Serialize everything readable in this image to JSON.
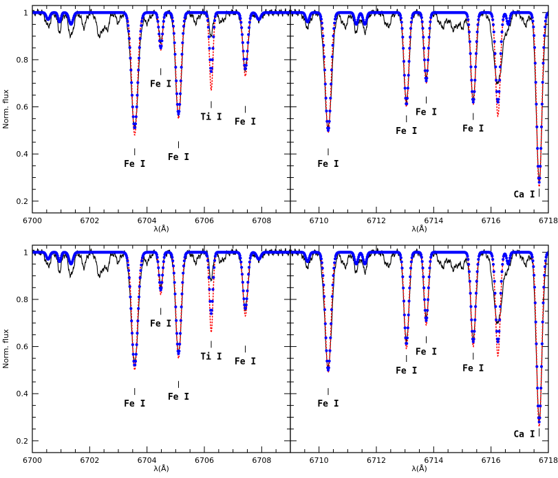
{
  "chart_data": [
    {
      "id": "top-left",
      "type": "line",
      "xlim": [
        6700,
        6709
      ],
      "ylim": [
        0.15,
        1.03
      ],
      "xticks": [
        "6700",
        "6702",
        "6704",
        "6706",
        "6708"
      ],
      "yticks": [
        "0.2",
        "0.4",
        "0.6",
        "0.8",
        "1"
      ],
      "xlabel": "λ(Å)",
      "ylabel": "Norm. flux",
      "series": [
        {
          "style": "solid",
          "color": "#000000",
          "lines": [
            {
              "center": 6703.57,
              "depth": 0.49,
              "width": 0.12
            },
            {
              "center": 6704.48,
              "depth": 0.12,
              "width": 0.07
            },
            {
              "center": 6705.1,
              "depth": 0.44,
              "width": 0.1
            },
            {
              "center": 6706.24,
              "depth": 0.1,
              "width": 0.06
            },
            {
              "center": 6707.43,
              "depth": 0.24,
              "width": 0.09
            }
          ]
        },
        {
          "style": "dotted",
          "color": "#ff0000",
          "lines": [
            {
              "center": 6703.57,
              "depth": 0.52,
              "width": 0.1
            },
            {
              "center": 6704.48,
              "depth": 0.16,
              "width": 0.06
            },
            {
              "center": 6705.1,
              "depth": 0.45,
              "width": 0.09
            },
            {
              "center": 6706.24,
              "depth": 0.33,
              "width": 0.06
            },
            {
              "center": 6707.43,
              "depth": 0.27,
              "width": 0.08
            }
          ]
        },
        {
          "style": "dots",
          "color": "#0000ff",
          "lines": [
            {
              "center": 6703.57,
              "depth": 0.49,
              "width": 0.11
            },
            {
              "center": 6704.48,
              "depth": 0.15,
              "width": 0.06
            },
            {
              "center": 6705.1,
              "depth": 0.43,
              "width": 0.09
            },
            {
              "center": 6706.24,
              "depth": 0.25,
              "width": 0.06
            },
            {
              "center": 6707.43,
              "depth": 0.24,
              "width": 0.08
            }
          ]
        }
      ],
      "annotations": [
        {
          "text": "Fe I",
          "x": 6703.57,
          "y": 0.38
        },
        {
          "text": "Fe I",
          "x": 6704.48,
          "y": 0.72
        },
        {
          "text": "Fe I",
          "x": 6705.1,
          "y": 0.41
        },
        {
          "text": "Ti I",
          "x": 6706.24,
          "y": 0.58
        },
        {
          "text": "Fe I",
          "x": 6707.43,
          "y": 0.56
        }
      ]
    },
    {
      "id": "top-right",
      "type": "line",
      "xlim": [
        6709,
        6718
      ],
      "ylim": [
        0.15,
        1.03
      ],
      "xticks": [
        "6710",
        "6712",
        "6714",
        "6716",
        "6718"
      ],
      "yticks": [],
      "xlabel": "λ(Å)",
      "ylabel": "",
      "series": [
        {
          "style": "solid",
          "color": "#000000",
          "lines": [
            {
              "center": 6710.32,
              "depth": 0.49,
              "width": 0.12
            },
            {
              "center": 6713.05,
              "depth": 0.38,
              "width": 0.09
            },
            {
              "center": 6713.74,
              "depth": 0.28,
              "width": 0.08
            },
            {
              "center": 6715.38,
              "depth": 0.37,
              "width": 0.09
            },
            {
              "center": 6716.24,
              "depth": 0.3,
              "width": 0.15
            },
            {
              "center": 6717.68,
              "depth": 0.71,
              "width": 0.1
            }
          ]
        },
        {
          "style": "dotted",
          "color": "#ff0000",
          "lines": [
            {
              "center": 6710.32,
              "depth": 0.51,
              "width": 0.1
            },
            {
              "center": 6713.05,
              "depth": 0.4,
              "width": 0.08
            },
            {
              "center": 6713.74,
              "depth": 0.3,
              "width": 0.07
            },
            {
              "center": 6715.38,
              "depth": 0.39,
              "width": 0.08
            },
            {
              "center": 6716.24,
              "depth": 0.44,
              "width": 0.08
            },
            {
              "center": 6717.68,
              "depth": 0.74,
              "width": 0.09
            }
          ]
        },
        {
          "style": "dots",
          "color": "#0000ff",
          "lines": [
            {
              "center": 6710.32,
              "depth": 0.5,
              "width": 0.1
            },
            {
              "center": 6713.05,
              "depth": 0.39,
              "width": 0.08
            },
            {
              "center": 6713.74,
              "depth": 0.29,
              "width": 0.07
            },
            {
              "center": 6715.38,
              "depth": 0.38,
              "width": 0.08
            },
            {
              "center": 6716.24,
              "depth": 0.38,
              "width": 0.08
            },
            {
              "center": 6717.68,
              "depth": 0.72,
              "width": 0.09
            }
          ]
        }
      ],
      "annotations": [
        {
          "text": "Fe I",
          "x": 6710.32,
          "y": 0.38
        },
        {
          "text": "Fe I",
          "x": 6713.05,
          "y": 0.52
        },
        {
          "text": "Fe I",
          "x": 6713.74,
          "y": 0.6
        },
        {
          "text": "Fe I",
          "x": 6715.38,
          "y": 0.53
        },
        {
          "text": "Ca I",
          "x": 6717.68,
          "y": 0.23
        }
      ]
    },
    {
      "id": "bottom-left",
      "type": "line",
      "xlim": [
        6700,
        6709
      ],
      "ylim": [
        0.15,
        1.03
      ],
      "xticks": [
        "6700",
        "6702",
        "6704",
        "6706",
        "6708"
      ],
      "yticks": [
        "0.2",
        "0.4",
        "0.6",
        "0.8",
        "1"
      ],
      "xlabel": "λ(Å)",
      "ylabel": "Norm. flux",
      "series": [
        {
          "style": "solid",
          "color": "#000000",
          "lines": [
            {
              "center": 6703.57,
              "depth": 0.47,
              "width": 0.12
            },
            {
              "center": 6704.48,
              "depth": 0.14,
              "width": 0.07
            },
            {
              "center": 6705.1,
              "depth": 0.43,
              "width": 0.1
            },
            {
              "center": 6706.24,
              "depth": 0.12,
              "width": 0.06
            },
            {
              "center": 6707.43,
              "depth": 0.24,
              "width": 0.09
            }
          ]
        },
        {
          "style": "dotted",
          "color": "#ff0000",
          "lines": [
            {
              "center": 6703.57,
              "depth": 0.5,
              "width": 0.1
            },
            {
              "center": 6704.48,
              "depth": 0.18,
              "width": 0.06
            },
            {
              "center": 6705.1,
              "depth": 0.45,
              "width": 0.09
            },
            {
              "center": 6706.24,
              "depth": 0.34,
              "width": 0.06
            },
            {
              "center": 6707.43,
              "depth": 0.27,
              "width": 0.08
            }
          ]
        },
        {
          "style": "dots",
          "color": "#0000ff",
          "lines": [
            {
              "center": 6703.57,
              "depth": 0.48,
              "width": 0.11
            },
            {
              "center": 6704.48,
              "depth": 0.16,
              "width": 0.06
            },
            {
              "center": 6705.1,
              "depth": 0.43,
              "width": 0.09
            },
            {
              "center": 6706.24,
              "depth": 0.26,
              "width": 0.06
            },
            {
              "center": 6707.43,
              "depth": 0.24,
              "width": 0.08
            }
          ]
        }
      ],
      "annotations": [
        {
          "text": "Fe I",
          "x": 6703.57,
          "y": 0.38
        },
        {
          "text": "Fe I",
          "x": 6704.48,
          "y": 0.72
        },
        {
          "text": "Fe I",
          "x": 6705.1,
          "y": 0.41
        },
        {
          "text": "Ti I",
          "x": 6706.24,
          "y": 0.58
        },
        {
          "text": "Fe I",
          "x": 6707.43,
          "y": 0.56
        }
      ]
    },
    {
      "id": "bottom-right",
      "type": "line",
      "xlim": [
        6709,
        6718
      ],
      "ylim": [
        0.15,
        1.03
      ],
      "xticks": [
        "6710",
        "6712",
        "6714",
        "6716",
        "6718"
      ],
      "yticks": [],
      "xlabel": "λ(Å)",
      "ylabel": "",
      "series": [
        {
          "style": "solid",
          "color": "#000000",
          "lines": [
            {
              "center": 6710.32,
              "depth": 0.49,
              "width": 0.12
            },
            {
              "center": 6713.05,
              "depth": 0.38,
              "width": 0.09
            },
            {
              "center": 6713.74,
              "depth": 0.28,
              "width": 0.08
            },
            {
              "center": 6715.38,
              "depth": 0.37,
              "width": 0.09
            },
            {
              "center": 6716.24,
              "depth": 0.3,
              "width": 0.15
            },
            {
              "center": 6717.68,
              "depth": 0.71,
              "width": 0.1
            }
          ]
        },
        {
          "style": "dotted",
          "color": "#ff0000",
          "lines": [
            {
              "center": 6710.32,
              "depth": 0.51,
              "width": 0.1
            },
            {
              "center": 6713.05,
              "depth": 0.41,
              "width": 0.08
            },
            {
              "center": 6713.74,
              "depth": 0.31,
              "width": 0.07
            },
            {
              "center": 6715.38,
              "depth": 0.4,
              "width": 0.08
            },
            {
              "center": 6716.24,
              "depth": 0.44,
              "width": 0.08
            },
            {
              "center": 6717.68,
              "depth": 0.74,
              "width": 0.09
            }
          ]
        },
        {
          "style": "dots",
          "color": "#0000ff",
          "lines": [
            {
              "center": 6710.32,
              "depth": 0.5,
              "width": 0.1
            },
            {
              "center": 6713.05,
              "depth": 0.39,
              "width": 0.08
            },
            {
              "center": 6713.74,
              "depth": 0.29,
              "width": 0.07
            },
            {
              "center": 6715.38,
              "depth": 0.38,
              "width": 0.08
            },
            {
              "center": 6716.24,
              "depth": 0.38,
              "width": 0.08
            },
            {
              "center": 6717.68,
              "depth": 0.72,
              "width": 0.09
            }
          ]
        }
      ],
      "annotations": [
        {
          "text": "Fe I",
          "x": 6710.32,
          "y": 0.38
        },
        {
          "text": "Fe I",
          "x": 6713.05,
          "y": 0.52
        },
        {
          "text": "Fe I",
          "x": 6713.74,
          "y": 0.6
        },
        {
          "text": "Fe I",
          "x": 6715.38,
          "y": 0.53
        },
        {
          "text": "Ca I",
          "x": 6717.68,
          "y": 0.23
        }
      ]
    }
  ]
}
